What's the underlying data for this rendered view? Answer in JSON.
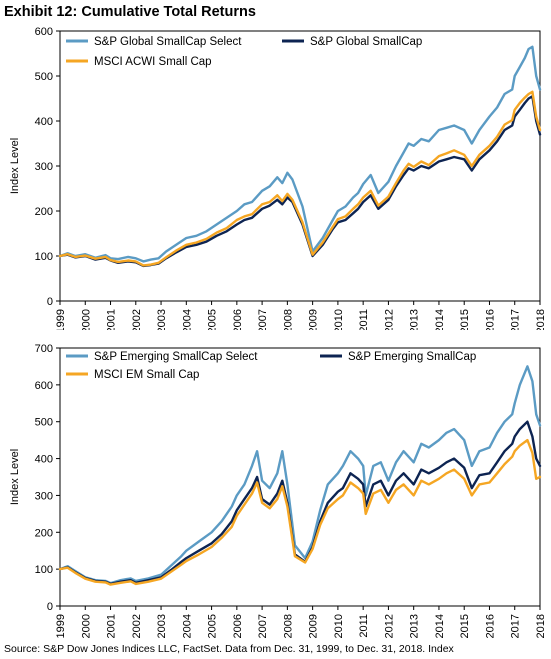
{
  "title": "Exhibit 12: Cumulative Total Returns",
  "source": "Source: S&P Dow Jones Indices LLC, FactSet.  Data from Dec. 31, 1999, to Dec. 31, 2018.  Index",
  "chart_data": [
    {
      "type": "line",
      "ylabel": "Index Level",
      "ylim": [
        0,
        600
      ],
      "yticks": [
        0,
        100,
        200,
        300,
        400,
        500,
        600
      ],
      "xlim": [
        1999,
        2018
      ],
      "xticks": [
        "1999",
        "2000",
        "2001",
        "2002",
        "2003",
        "2004",
        "2005",
        "2006",
        "2007",
        "2008",
        "2009",
        "2010",
        "2011",
        "2012",
        "2013",
        "2014",
        "2015",
        "2016",
        "2017",
        "2018"
      ],
      "legend": "top",
      "series": [
        {
          "name": "S&P Global SmallCap Select",
          "color": "#5b9bc4",
          "x": [
            1999,
            1999.3,
            1999.6,
            2000,
            2000.4,
            2000.8,
            2001,
            2001.3,
            2001.7,
            2002,
            2002.3,
            2002.6,
            2002.9,
            2003.2,
            2003.6,
            2004,
            2004.4,
            2004.8,
            2005.2,
            2005.6,
            2006,
            2006.3,
            2006.6,
            2007,
            2007.3,
            2007.6,
            2007.8,
            2008,
            2008.2,
            2008.6,
            2009,
            2009.4,
            2009.8,
            2010,
            2010.3,
            2010.6,
            2010.8,
            2011,
            2011.3,
            2011.6,
            2012,
            2012.3,
            2012.6,
            2012.8,
            2013,
            2013.3,
            2013.6,
            2014,
            2014.3,
            2014.6,
            2015,
            2015.3,
            2015.6,
            2016,
            2016.3,
            2016.6,
            2016.9,
            2017,
            2017.2,
            2017.4,
            2017.55,
            2017.7,
            2017.85,
            2018
          ],
          "y": [
            100,
            106,
            100,
            104,
            96,
            102,
            95,
            93,
            98,
            95,
            88,
            92,
            95,
            110,
            125,
            140,
            145,
            155,
            170,
            185,
            200,
            215,
            220,
            245,
            255,
            275,
            262,
            285,
            270,
            210,
            110,
            140,
            180,
            200,
            210,
            230,
            240,
            260,
            280,
            240,
            265,
            300,
            330,
            350,
            345,
            360,
            355,
            380,
            385,
            390,
            380,
            350,
            380,
            410,
            430,
            460,
            470,
            500,
            520,
            540,
            560,
            565,
            500,
            470
          ]
        },
        {
          "name": "S&P Global SmallCap",
          "color": "#0d2452",
          "x": [
            1999,
            1999.3,
            1999.6,
            2000,
            2000.4,
            2000.8,
            2001,
            2001.3,
            2001.7,
            2002,
            2002.3,
            2002.6,
            2002.9,
            2003.2,
            2003.6,
            2004,
            2004.4,
            2004.8,
            2005.2,
            2005.6,
            2006,
            2006.3,
            2006.6,
            2007,
            2007.3,
            2007.6,
            2007.8,
            2008,
            2008.2,
            2008.6,
            2009,
            2009.4,
            2009.8,
            2010,
            2010.3,
            2010.6,
            2010.8,
            2011,
            2011.3,
            2011.6,
            2012,
            2012.3,
            2012.6,
            2012.8,
            2013,
            2013.3,
            2013.6,
            2014,
            2014.3,
            2014.6,
            2015,
            2015.3,
            2015.6,
            2016,
            2016.3,
            2016.6,
            2016.9,
            2017,
            2017.2,
            2017.4,
            2017.55,
            2017.7,
            2017.85,
            2018
          ],
          "y": [
            100,
            103,
            97,
            100,
            92,
            96,
            90,
            85,
            88,
            86,
            78,
            80,
            83,
            95,
            108,
            120,
            125,
            132,
            145,
            155,
            170,
            180,
            185,
            205,
            212,
            225,
            215,
            230,
            220,
            170,
            100,
            125,
            160,
            175,
            180,
            195,
            205,
            220,
            235,
            205,
            225,
            255,
            280,
            295,
            290,
            300,
            295,
            310,
            315,
            320,
            315,
            290,
            315,
            335,
            355,
            380,
            390,
            410,
            425,
            440,
            450,
            455,
            400,
            370
          ]
        },
        {
          "name": "MSCI ACWI Small Cap",
          "color": "#f5a623",
          "x": [
            1999,
            1999.3,
            1999.6,
            2000,
            2000.4,
            2000.8,
            2001,
            2001.3,
            2001.7,
            2002,
            2002.3,
            2002.6,
            2002.9,
            2003.2,
            2003.6,
            2004,
            2004.4,
            2004.8,
            2005.2,
            2005.6,
            2006,
            2006.3,
            2006.6,
            2007,
            2007.3,
            2007.6,
            2007.8,
            2008,
            2008.2,
            2008.6,
            2009,
            2009.4,
            2009.8,
            2010,
            2010.3,
            2010.6,
            2010.8,
            2011,
            2011.3,
            2011.6,
            2012,
            2012.3,
            2012.6,
            2012.8,
            2013,
            2013.3,
            2013.6,
            2014,
            2014.3,
            2014.6,
            2015,
            2015.3,
            2015.6,
            2016,
            2016.3,
            2016.6,
            2016.9,
            2017,
            2017.2,
            2017.4,
            2017.55,
            2017.7,
            2017.85,
            2018
          ],
          "y": [
            100,
            104,
            98,
            101,
            94,
            98,
            91,
            87,
            90,
            88,
            79,
            81,
            85,
            97,
            112,
            125,
            130,
            138,
            152,
            162,
            180,
            188,
            193,
            215,
            220,
            235,
            222,
            238,
            225,
            175,
            103,
            130,
            165,
            182,
            188,
            205,
            215,
            230,
            245,
            212,
            232,
            262,
            290,
            305,
            298,
            310,
            302,
            322,
            328,
            335,
            325,
            300,
            325,
            345,
            365,
            392,
            402,
            425,
            440,
            452,
            460,
            465,
            410,
            380
          ]
        }
      ]
    },
    {
      "type": "line",
      "ylabel": "Index Level",
      "ylim": [
        0,
        700
      ],
      "yticks": [
        0,
        100,
        200,
        300,
        400,
        500,
        600,
        700
      ],
      "xlim": [
        1999,
        2018
      ],
      "xticks": [
        "1999",
        "2000",
        "2001",
        "2002",
        "2003",
        "2004",
        "2005",
        "2006",
        "2007",
        "2008",
        "2009",
        "2010",
        "2011",
        "2012",
        "2013",
        "2014",
        "2015",
        "2016",
        "2017",
        "2018"
      ],
      "legend": "top",
      "series": [
        {
          "name": "S&P Emerging SmallCap Select",
          "color": "#5b9bc4",
          "x": [
            1999,
            1999.3,
            1999.6,
            2000,
            2000.4,
            2000.8,
            2001,
            2001.4,
            2001.8,
            2002,
            2002.5,
            2003,
            2003.4,
            2003.8,
            2004,
            2004.5,
            2005,
            2005.4,
            2005.8,
            2006,
            2006.3,
            2006.6,
            2006.8,
            2007,
            2007.3,
            2007.6,
            2007.8,
            2008,
            2008.3,
            2008.7,
            2009,
            2009.3,
            2009.6,
            2010,
            2010.2,
            2010.5,
            2010.8,
            2011,
            2011.1,
            2011.4,
            2011.7,
            2012,
            2012.3,
            2012.6,
            2013,
            2013.3,
            2013.6,
            2014,
            2014.3,
            2014.6,
            2015,
            2015.3,
            2015.6,
            2016,
            2016.3,
            2016.6,
            2016.9,
            2017,
            2017.2,
            2017.5,
            2017.7,
            2017.85,
            2018
          ],
          "y": [
            100,
            108,
            95,
            78,
            70,
            68,
            62,
            70,
            75,
            68,
            75,
            85,
            110,
            135,
            150,
            175,
            200,
            230,
            270,
            300,
            330,
            380,
            420,
            340,
            320,
            360,
            420,
            330,
            165,
            130,
            175,
            260,
            330,
            360,
            380,
            420,
            400,
            380,
            300,
            380,
            390,
            340,
            390,
            420,
            390,
            440,
            430,
            450,
            470,
            480,
            450,
            380,
            420,
            430,
            470,
            500,
            520,
            550,
            600,
            650,
            610,
            520,
            490
          ]
        },
        {
          "name": "S&P Emerging SmallCap",
          "color": "#0d2452",
          "x": [
            1999,
            1999.3,
            1999.6,
            2000,
            2000.4,
            2000.8,
            2001,
            2001.4,
            2001.8,
            2002,
            2002.5,
            2003,
            2003.4,
            2003.8,
            2004,
            2004.5,
            2005,
            2005.4,
            2005.8,
            2006,
            2006.3,
            2006.6,
            2006.8,
            2007,
            2007.3,
            2007.6,
            2007.8,
            2008,
            2008.3,
            2008.7,
            2009,
            2009.3,
            2009.6,
            2010,
            2010.2,
            2010.5,
            2010.8,
            2011,
            2011.1,
            2011.4,
            2011.7,
            2012,
            2012.3,
            2012.6,
            2013,
            2013.3,
            2013.6,
            2014,
            2014.3,
            2014.6,
            2015,
            2015.3,
            2015.6,
            2016,
            2016.3,
            2016.6,
            2016.9,
            2017,
            2017.2,
            2017.5,
            2017.7,
            2017.85,
            2018
          ],
          "y": [
            100,
            105,
            92,
            76,
            68,
            66,
            60,
            66,
            70,
            63,
            70,
            78,
            98,
            120,
            130,
            150,
            170,
            195,
            230,
            260,
            290,
            320,
            350,
            290,
            275,
            305,
            340,
            280,
            140,
            120,
            160,
            230,
            280,
            310,
            320,
            360,
            345,
            330,
            270,
            330,
            340,
            300,
            340,
            360,
            330,
            370,
            360,
            375,
            390,
            400,
            375,
            320,
            355,
            360,
            390,
            420,
            440,
            460,
            480,
            500,
            460,
            400,
            380
          ]
        },
        {
          "name": "MSCI EM Small Cap",
          "color": "#f5a623",
          "x": [
            1999,
            1999.3,
            1999.6,
            2000,
            2000.4,
            2000.8,
            2001,
            2001.4,
            2001.8,
            2002,
            2002.5,
            2003,
            2003.4,
            2003.8,
            2004,
            2004.5,
            2005,
            2005.4,
            2005.8,
            2006,
            2006.3,
            2006.6,
            2006.8,
            2007,
            2007.3,
            2007.6,
            2007.8,
            2008,
            2008.3,
            2008.7,
            2009,
            2009.3,
            2009.6,
            2010,
            2010.2,
            2010.5,
            2010.8,
            2011,
            2011.1,
            2011.4,
            2011.7,
            2012,
            2012.3,
            2012.6,
            2013,
            2013.3,
            2013.6,
            2014,
            2014.3,
            2014.6,
            2015,
            2015.3,
            2015.6,
            2016,
            2016.3,
            2016.6,
            2016.9,
            2017,
            2017.2,
            2017.5,
            2017.7,
            2017.85,
            2018
          ],
          "y": [
            100,
            104,
            90,
            74,
            66,
            64,
            58,
            63,
            67,
            60,
            66,
            74,
            93,
            112,
            122,
            140,
            160,
            185,
            215,
            245,
            275,
            305,
            335,
            280,
            265,
            290,
            325,
            270,
            135,
            118,
            155,
            220,
            265,
            290,
            300,
            335,
            320,
            305,
            250,
            305,
            315,
            280,
            315,
            330,
            300,
            340,
            330,
            345,
            360,
            370,
            345,
            300,
            330,
            335,
            360,
            385,
            405,
            420,
            435,
            450,
            415,
            345,
            350
          ]
        }
      ]
    }
  ]
}
